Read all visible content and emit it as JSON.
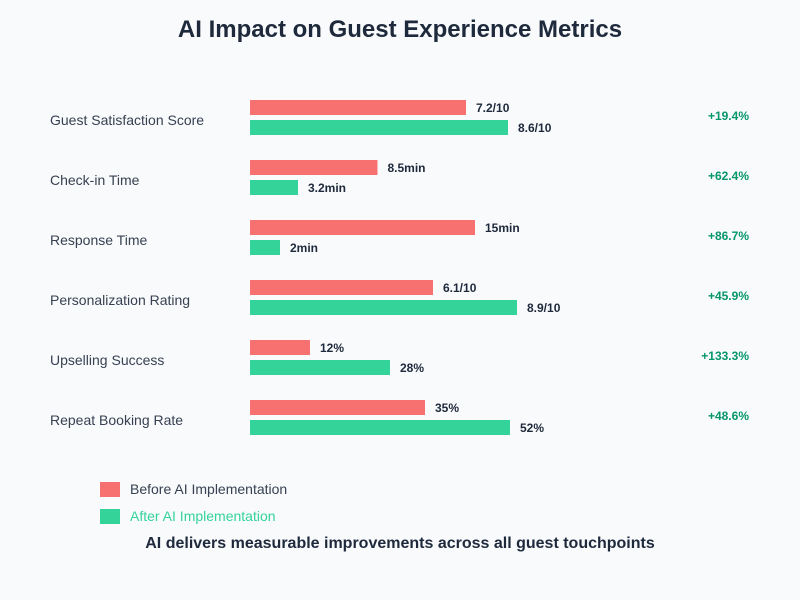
{
  "chart_data": {
    "type": "bar",
    "orientation": "horizontal",
    "title": "AI Impact on Guest Experience Metrics",
    "subtitle_footer": "AI delivers measurable improvements across all guest touchpoints",
    "categories": [
      "Guest Satisfaction Score",
      "Check-in Time",
      "Response Time",
      "Personalization Rating",
      "Upselling Success",
      "Repeat Booking Rate"
    ],
    "series": [
      {
        "name": "Before AI Implementation",
        "color": "#f87171",
        "values": [
          7.2,
          8.5,
          15,
          6.1,
          12,
          35
        ],
        "labels": [
          "7.2/10",
          "8.5min",
          "15min",
          "6.1/10",
          "12%",
          "35%"
        ]
      },
      {
        "name": "After AI Implementation",
        "color": "#34d399",
        "values": [
          8.6,
          3.2,
          2,
          8.9,
          28,
          52
        ],
        "labels": [
          "8.6/10",
          "3.2min",
          "2min",
          "8.9/10",
          "28%",
          "52%"
        ]
      }
    ],
    "scale_max": [
      10,
      20,
      20,
      10,
      60,
      60
    ],
    "units": [
      "/10",
      "min",
      "min",
      "/10",
      "%",
      "%"
    ],
    "improvements": [
      "+19.4%",
      "+62.4%",
      "+86.7%",
      "+45.9%",
      "+133.3%",
      "+48.6%"
    ],
    "improvement_color": "#059669",
    "legend": "bottom-left",
    "grid": false
  },
  "legend": {
    "before": "Before AI Implementation",
    "after": "After AI Implementation"
  }
}
